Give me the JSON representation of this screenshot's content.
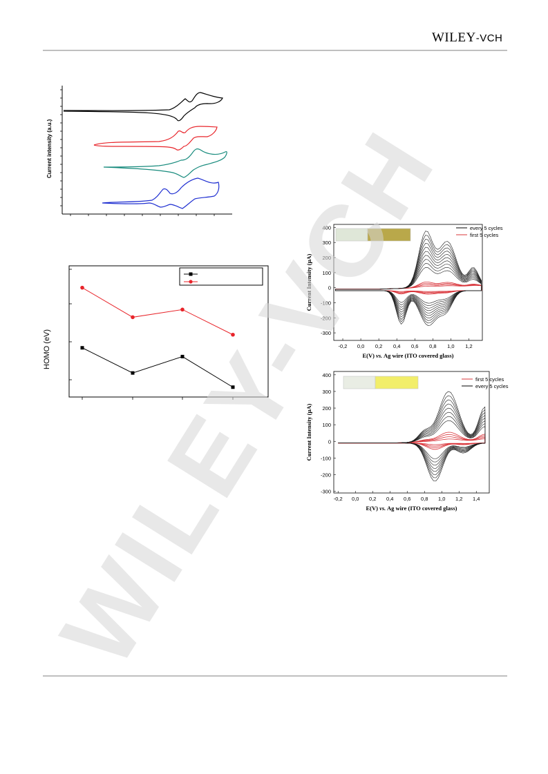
{
  "header": {
    "logo_main": "WILEY",
    "logo_suffix": "-VCH"
  },
  "watermark": {
    "text": "WILEY-VCH",
    "color": "#d6d6d6"
  },
  "figure_cv_stack": {
    "type": "line",
    "ylabel": "Current intensity (a.u.)",
    "series_colors": [
      "#000000",
      "#e8242a",
      "#168a7c",
      "#1f2fd1"
    ]
  },
  "chart_data": [
    {
      "type": "line",
      "title": "",
      "xlabel": "",
      "ylabel": "HOMO (eV)",
      "x": [
        1,
        2,
        3,
        4
      ],
      "series": [
        {
          "color": "#000000",
          "marker": "square",
          "values": [
            -5.55,
            -5.78,
            -5.63,
            -5.91
          ]
        },
        {
          "color": "#e8242a",
          "marker": "circle",
          "values": [
            -5.0,
            -5.27,
            -5.2,
            -5.43
          ]
        }
      ],
      "legend": "top-right",
      "legend_entries": [
        "",
        ""
      ]
    },
    {
      "type": "line",
      "xlabel": "E(V) vs. Ag wire (ITO covered glass)",
      "xlabel_parts": [
        "E(V) ",
        "vs.",
        " Ag wire (ITO covered glass)"
      ],
      "ylabel": "Current Intensity (µA)",
      "xlim": [
        -0.3,
        1.35
      ],
      "ylim": [
        -350,
        420
      ],
      "xticks": [
        "-0,2",
        "0,0",
        "0,2",
        "0,4",
        "0,6",
        "0,8",
        "1,0",
        "1,2"
      ],
      "xtick_values": [
        -0.2,
        0.0,
        0.2,
        0.4,
        0.6,
        0.8,
        1.0,
        1.2
      ],
      "yticks": [
        "400",
        "300",
        "200",
        "100",
        "0",
        "-100",
        "-200",
        "-300"
      ],
      "ytick_values": [
        400,
        300,
        200,
        100,
        0,
        -100,
        -200,
        -300
      ],
      "legend_entries": [
        {
          "name": "every 5 cycles",
          "color": "#000000"
        },
        {
          "name": "first 5 cycles",
          "color": "#d9343a"
        }
      ],
      "legend": "top-right",
      "inset_colors": [
        "#dfe7d8",
        "#b9a84a"
      ]
    },
    {
      "type": "line",
      "xlabel": "E(V) vs. Ag wire (ITO covered glass)",
      "xlabel_parts": [
        "E(V) ",
        "vs.",
        " Ag wire (ITO covered glass)"
      ],
      "ylabel": "Current Intensity (µA)",
      "xlim": [
        -0.25,
        1.55
      ],
      "ylim": [
        -310,
        420
      ],
      "xticks": [
        "-0,2",
        "0,0",
        "0,2",
        "0,4",
        "0,6",
        "0,8",
        "1,0",
        "1,2",
        "1,4"
      ],
      "xtick_values": [
        -0.2,
        0.0,
        0.2,
        0.4,
        0.6,
        0.8,
        1.0,
        1.2,
        1.4
      ],
      "yticks": [
        "400",
        "300",
        "200",
        "100",
        "0",
        "-100",
        "-200",
        "-300"
      ],
      "ytick_values": [
        400,
        300,
        200,
        100,
        0,
        -100,
        -200,
        -300
      ],
      "legend_entries": [
        {
          "name": "first 5 cycles",
          "color": "#d9343a"
        },
        {
          "name": "every 5 cycles",
          "color": "#000000"
        }
      ],
      "legend": "top-right",
      "inset_colors": [
        "#e9ede4",
        "#f2ee6a"
      ]
    }
  ]
}
